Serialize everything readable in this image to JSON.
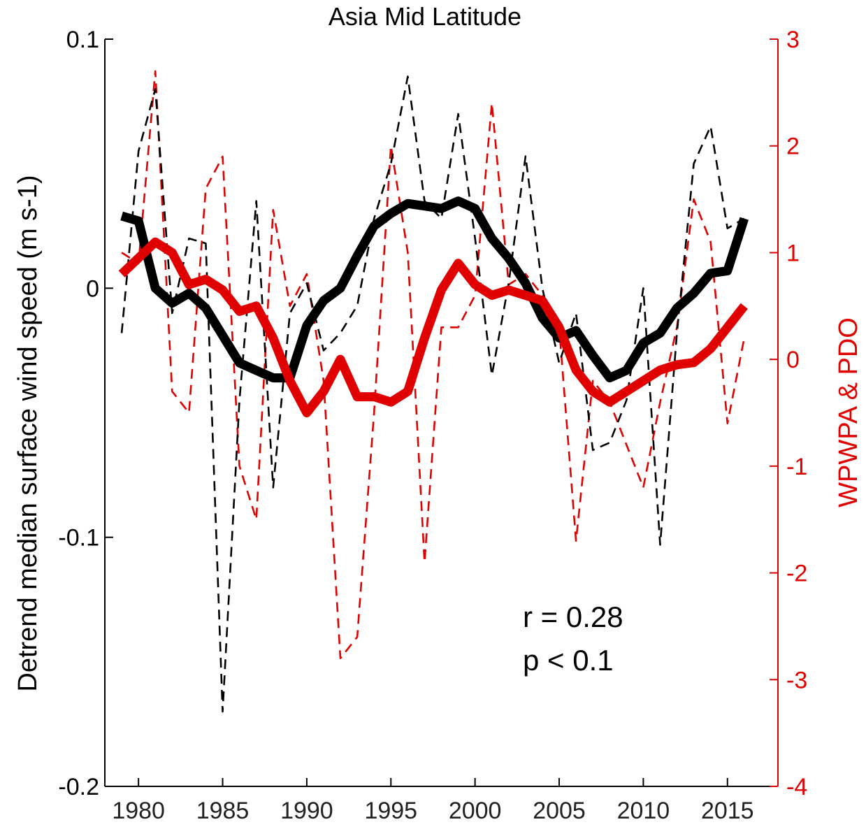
{
  "chart_data": {
    "type": "line",
    "title": "Asia Mid Latitude",
    "xlabel": "",
    "ylabel_left": "Detrend median surface wind speed (m s-1)",
    "ylabel_right": "WPWPA & PDO",
    "xlim": [
      1978,
      2018
    ],
    "ylim_left": [
      -0.2,
      0.1
    ],
    "ylim_right": [
      -4,
      3
    ],
    "x_ticks": [
      1980,
      1985,
      1990,
      1995,
      2000,
      2005,
      2010,
      2015
    ],
    "y_ticks_left": [
      0.1,
      0,
      -0.1,
      -0.2
    ],
    "y_ticks_right": [
      3,
      2,
      1,
      0,
      -1,
      -2,
      -3,
      -4
    ],
    "colors": {
      "left_axis": "#000000",
      "right_axis": "#e00000"
    },
    "x": [
      1979,
      1980,
      1981,
      1982,
      1983,
      1984,
      1985,
      1986,
      1987,
      1988,
      1989,
      1990,
      1991,
      1992,
      1993,
      1994,
      1995,
      1996,
      1997,
      1998,
      1999,
      2000,
      2001,
      2002,
      2003,
      2004,
      2005,
      2006,
      2007,
      2008,
      2009,
      2010,
      2011,
      2012,
      2013,
      2014,
      2015,
      2016
    ],
    "series": [
      {
        "axis": "left",
        "style": "dashed-thin",
        "color": "#000000",
        "values": [
          -0.018,
          0.055,
          0.08,
          -0.01,
          0.02,
          0.018,
          -0.17,
          -0.045,
          0.035,
          -0.08,
          -0.01,
          0.002,
          -0.025,
          -0.018,
          -0.007,
          0.028,
          0.05,
          0.085,
          0.035,
          0.028,
          0.07,
          0.02,
          -0.035,
          0.002,
          0.053,
          0.0,
          -0.03,
          -0.01,
          -0.065,
          -0.062,
          -0.045,
          0.0,
          -0.103,
          -0.018,
          0.05,
          0.065,
          0.024,
          0.028
        ]
      },
      {
        "axis": "left",
        "style": "solid-thick",
        "color": "#000000",
        "values": [
          0.029,
          0.027,
          0.0,
          -0.006,
          -0.002,
          -0.008,
          -0.019,
          -0.03,
          -0.033,
          -0.036,
          -0.036,
          -0.015,
          -0.005,
          0.0,
          0.013,
          0.025,
          0.03,
          0.034,
          0.033,
          0.032,
          0.035,
          0.032,
          0.02,
          0.012,
          0.002,
          -0.012,
          -0.02,
          -0.017,
          -0.027,
          -0.036,
          -0.033,
          -0.022,
          -0.018,
          -0.008,
          -0.002,
          0.006,
          0.007,
          0.028
        ]
      },
      {
        "axis": "right",
        "style": "dashed-thin",
        "color": "#e00000",
        "values": [
          1.0,
          0.9,
          2.7,
          -0.3,
          -0.5,
          1.6,
          1.9,
          -1.0,
          -1.5,
          1.4,
          0.5,
          0.8,
          -0.2,
          -2.8,
          -2.6,
          -0.5,
          2.0,
          1.0,
          -1.9,
          0.3,
          0.3,
          0.6,
          2.4,
          0.7,
          0.8,
          0.6,
          0.3,
          -1.7,
          -0.2,
          -0.4,
          -0.8,
          -1.2,
          -0.4,
          0.3,
          1.5,
          1.1,
          -0.6,
          0.2
        ]
      },
      {
        "axis": "right",
        "style": "solid-thick",
        "color": "#e00000",
        "values": [
          0.8,
          0.95,
          1.1,
          1.0,
          0.7,
          0.75,
          0.65,
          0.45,
          0.5,
          0.2,
          -0.2,
          -0.5,
          -0.3,
          0.0,
          -0.35,
          -0.35,
          -0.4,
          -0.3,
          0.2,
          0.65,
          0.9,
          0.7,
          0.6,
          0.65,
          0.6,
          0.55,
          0.3,
          -0.1,
          -0.3,
          -0.4,
          -0.3,
          -0.2,
          -0.1,
          -0.05,
          -0.03,
          0.1,
          0.3,
          0.5
        ]
      }
    ],
    "annotations": [
      "r = 0.28",
      "p < 0.1"
    ],
    "grid": false,
    "legend": "none"
  }
}
